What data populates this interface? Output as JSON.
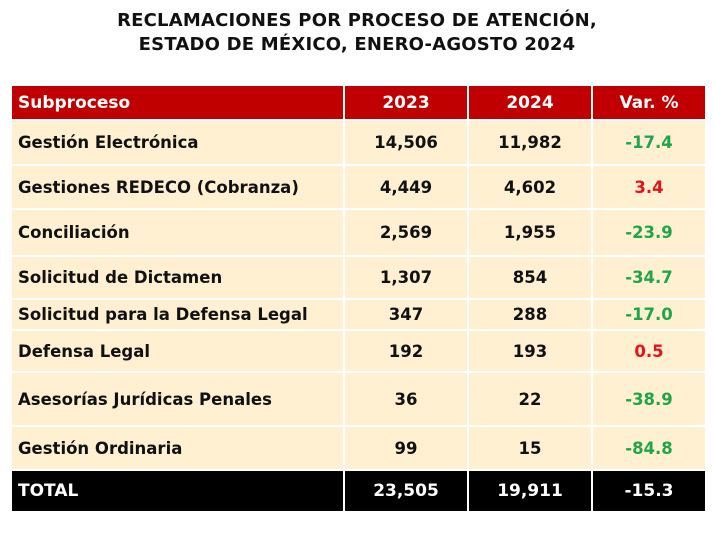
{
  "title": {
    "line1": "RECLAMACIONES POR PROCESO DE ATENCIÓN,",
    "line2": "ESTADO DE MÉXICO, ENERO-AGOSTO 2024"
  },
  "colors": {
    "header_bg": "#c00000",
    "row_bg": "#fff0d2",
    "total_bg": "#000000",
    "decrease": "#1fa54a",
    "increase": "#e3131b"
  },
  "table": {
    "columns": [
      "Subproceso",
      "2023",
      "2024",
      "Var. %"
    ],
    "rows": [
      {
        "subproceso": "Gestión Electrónica",
        "y2023": "14,506",
        "y2024": "11,982",
        "var": "-17.4"
      },
      {
        "subproceso": "Gestiones REDECO (Cobranza)",
        "y2023": "4,449",
        "y2024": "4,602",
        "var": "3.4"
      },
      {
        "subproceso": "Conciliación",
        "y2023": "2,569",
        "y2024": "1,955",
        "var": "-23.9"
      },
      {
        "subproceso": "Solicitud de Dictamen",
        "y2023": "1,307",
        "y2024": "854",
        "var": "-34.7"
      },
      {
        "subproceso": "Solicitud para la Defensa Legal",
        "y2023": "347",
        "y2024": "288",
        "var": "-17.0"
      },
      {
        "subproceso": "Defensa Legal",
        "y2023": "192",
        "y2024": "193",
        "var": "0.5"
      },
      {
        "subproceso": "Asesorías Jurídicas Penales",
        "y2023": "36",
        "y2024": "22",
        "var": "-38.9"
      },
      {
        "subproceso": "Gestión Ordinaria",
        "y2023": "99",
        "y2024": "15",
        "var": "-84.8"
      }
    ],
    "total": {
      "label": "TOTAL",
      "y2023": "23,505",
      "y2024": "19,911",
      "var": "-15.3"
    }
  }
}
